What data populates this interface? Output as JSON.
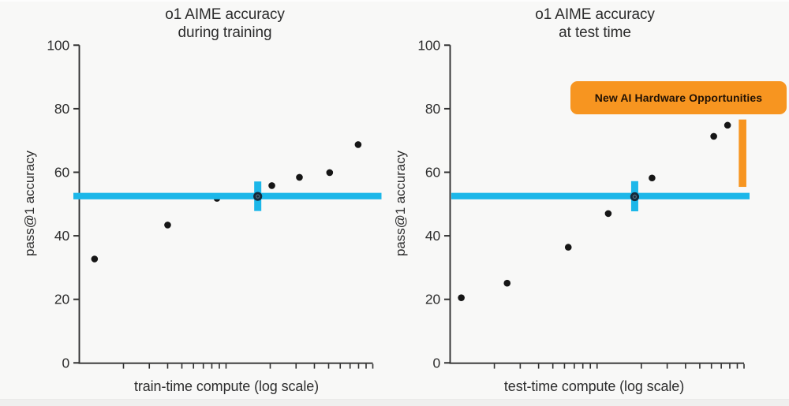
{
  "page": {
    "background": "#f8f8f7",
    "bottom_strip_color": "#efefee"
  },
  "colors": {
    "axis": "#303030",
    "text": "#2d2d2d",
    "dot": "#161616",
    "baseline_cyan": "#1cb7e9",
    "highlight_marker": "#13293a",
    "highlight_marker_ring": "#4e6878",
    "annotation_orange": "#f79520",
    "annotation_text": "#221204"
  },
  "chart_data": [
    {
      "type": "scatter",
      "title": "o1 AIME accuracy",
      "subtitle": "during training",
      "xlabel": "train-time compute (log scale)",
      "ylabel": "pass@1 accuracy",
      "ylim": [
        0,
        100
      ],
      "yticks": [
        0,
        20,
        40,
        60,
        80,
        100
      ],
      "x_axis": "unlabeled log scale, 2 decades, minor ticks at 2-9",
      "grid": false,
      "legend": false,
      "points": [
        {
          "x_frac": 0.052,
          "y": 32.7
        },
        {
          "x_frac": 0.301,
          "y": 43.4
        },
        {
          "x_frac": 0.469,
          "y": 51.8,
          "behind_baseline": true
        },
        {
          "x_frac": 0.608,
          "y": 52.4,
          "highlight": true
        },
        {
          "x_frac": 0.656,
          "y": 55.8
        },
        {
          "x_frac": 0.75,
          "y": 58.4
        },
        {
          "x_frac": 0.853,
          "y": 59.9
        },
        {
          "x_frac": 0.95,
          "y": 68.7
        }
      ],
      "baseline": {
        "y": 52.5
      },
      "highlight_band": {
        "x_frac": 0.608,
        "y_from": 47.8,
        "y_to": 57.1
      }
    },
    {
      "type": "scatter",
      "title": "o1 AIME accuracy",
      "subtitle": "at test time",
      "xlabel": "test-time compute (log scale)",
      "ylabel": "pass@1 accuracy",
      "ylim": [
        0,
        100
      ],
      "yticks": [
        0,
        20,
        40,
        60,
        80,
        100
      ],
      "x_axis": "unlabeled log scale, 2 decades, minor ticks at 2-9",
      "grid": false,
      "legend": false,
      "points": [
        {
          "x_frac": 0.038,
          "y": 20.5
        },
        {
          "x_frac": 0.194,
          "y": 25.1
        },
        {
          "x_frac": 0.402,
          "y": 36.4
        },
        {
          "x_frac": 0.538,
          "y": 47.0
        },
        {
          "x_frac": 0.628,
          "y": 52.3,
          "highlight": true
        },
        {
          "x_frac": 0.687,
          "y": 58.2
        },
        {
          "x_frac": 0.897,
          "y": 71.3
        },
        {
          "x_frac": 0.944,
          "y": 74.8
        }
      ],
      "baseline": {
        "y": 52.5
      },
      "highlight_band": {
        "x_frac": 0.628,
        "y_from": 47.7,
        "y_to": 57.2
      },
      "annotation": {
        "label": "New AI Hardware Opportunities",
        "bar": {
          "x_frac": 0.995,
          "y_from": 55.4,
          "y_to": 76.6
        }
      }
    }
  ]
}
